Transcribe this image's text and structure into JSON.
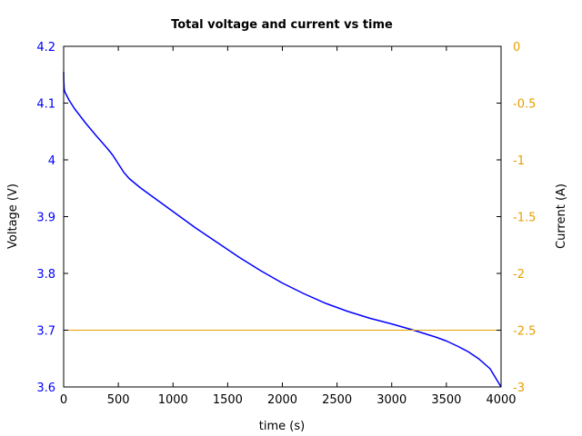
{
  "chart_data": {
    "type": "line",
    "title": "Total voltage and current vs time",
    "xlabel": "time (s)",
    "ylabel": "Voltage (V)",
    "y2label": "Current (A)",
    "xlim": [
      0,
      4000
    ],
    "ylim": [
      3.6,
      4.2
    ],
    "y2lim": [
      -3,
      0
    ],
    "xticks": [
      0,
      500,
      1000,
      1500,
      2000,
      2500,
      3000,
      3500,
      4000
    ],
    "xtick_labels": [
      "0",
      "500",
      "1000",
      "1500",
      "2000",
      "2500",
      "3000",
      "3500",
      "4000"
    ],
    "yticks": [
      3.6,
      3.7,
      3.8,
      3.9,
      4.0,
      4.1,
      4.2
    ],
    "ytick_labels": [
      "3.6",
      "3.7",
      "3.8",
      "3.9",
      "4",
      "4.1",
      "4.2"
    ],
    "y2ticks": [
      -3,
      -2.5,
      -2,
      -1.5,
      -1,
      -0.5,
      0
    ],
    "y2tick_labels": [
      "-3",
      "-2.5",
      "-2",
      "-1.5",
      "-1",
      "-0.5",
      "0"
    ],
    "grid": false,
    "colors": {
      "voltage": "#0000ff",
      "current": "#e69f00",
      "axis": "#000000",
      "left_ticks": "#0000ff",
      "right_ticks": "#e69f00"
    },
    "series": [
      {
        "axis": "left",
        "x": [
          0,
          1,
          5,
          10,
          50,
          100,
          200,
          300,
          400,
          450,
          500,
          550,
          600,
          700,
          800,
          1000,
          1200,
          1400,
          1600,
          1800,
          2000,
          2200,
          2400,
          2600,
          2800,
          3000,
          3200,
          3400,
          3500,
          3600,
          3700,
          3800,
          3900,
          4000
        ],
        "values": [
          4.155,
          4.14,
          4.125,
          4.12,
          4.105,
          4.09,
          4.065,
          4.042,
          4.02,
          4.008,
          3.993,
          3.978,
          3.967,
          3.951,
          3.937,
          3.909,
          3.881,
          3.855,
          3.829,
          3.805,
          3.783,
          3.764,
          3.747,
          3.733,
          3.721,
          3.711,
          3.7,
          3.688,
          3.681,
          3.672,
          3.662,
          3.649,
          3.632,
          3.6
        ]
      },
      {
        "axis": "right",
        "x": [
          0,
          4000
        ],
        "values": [
          -2.5,
          -2.5
        ]
      }
    ]
  }
}
